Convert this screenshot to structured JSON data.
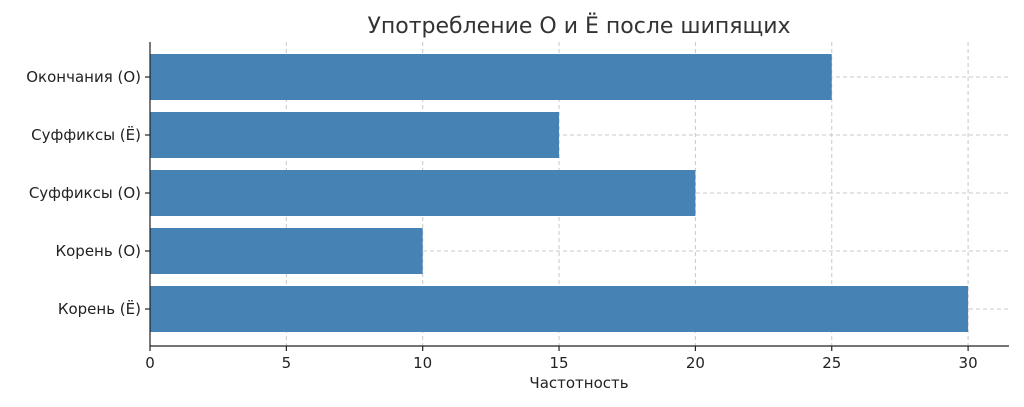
{
  "chart_data": {
    "type": "bar",
    "orientation": "horizontal",
    "title": "Употребление О и Ё после шипящих",
    "xlabel": "Частотность",
    "ylabel": "",
    "categories": [
      "Корень (Ё)",
      "Корень (О)",
      "Суффиксы (О)",
      "Суффиксы (Ё)",
      "Окончания (О)"
    ],
    "values": [
      30,
      10,
      20,
      15,
      25
    ],
    "xlim": [
      0,
      31.5
    ],
    "xticks": [
      0,
      5,
      10,
      15,
      20,
      25,
      30
    ],
    "grid": true,
    "bar_color": "#4682b4"
  }
}
